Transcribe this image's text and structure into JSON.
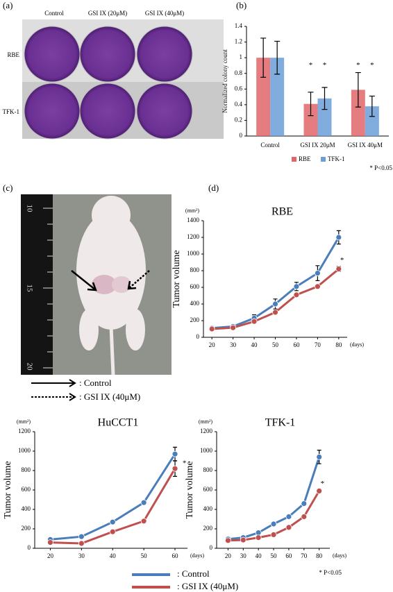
{
  "panels": {
    "a": {
      "label": "(a)",
      "columns": [
        "Control",
        "GSI IX (20μM)",
        "GSI IX (40μM)"
      ],
      "rows": [
        "RBE",
        "TFK-1"
      ]
    },
    "b": {
      "label": "(b)"
    },
    "c": {
      "label": "(c)",
      "ruler": [
        "10",
        "15",
        "20"
      ],
      "legend": [
        ": Control",
        ": GSI IX (40μM)"
      ]
    },
    "d": {
      "label": "(d)"
    }
  },
  "chart_data": [
    {
      "type": "bar",
      "categories": [
        "Control",
        "GSI IX 20μM",
        "GSI IX 40μM"
      ],
      "series": [
        {
          "name": "RBE",
          "color": "#e0666a",
          "values": [
            1,
            0.41,
            0.59
          ],
          "errors": [
            0.25,
            0.15,
            0.22
          ]
        },
        {
          "name": "TFK-1",
          "color": "#6b9fd8",
          "values": [
            1,
            0.48,
            0.38
          ],
          "errors": [
            0.21,
            0.14,
            0.13
          ]
        }
      ],
      "ylim": [
        0,
        1.4
      ],
      "yticks": [
        0,
        0.2,
        0.4,
        0.6,
        0.8,
        1,
        1.2,
        1.4
      ],
      "ylabel": "Normalized colony count",
      "note": "* P<0.05",
      "annotations": [
        {
          "text": "*",
          "category": 1,
          "series": 0,
          "y": 0.9
        },
        {
          "text": "*",
          "category": 1,
          "series": 1,
          "y": 0.9
        },
        {
          "text": "*",
          "category": 2,
          "series": 0,
          "y": 0.9
        },
        {
          "text": "*",
          "category": 2,
          "series": 1,
          "y": 0.9
        }
      ]
    },
    {
      "type": "line",
      "title": "RBE",
      "x": [
        20,
        30,
        40,
        50,
        60,
        70,
        80
      ],
      "xlim": [
        16,
        84
      ],
      "xticks": [
        20,
        30,
        40,
        50,
        60,
        70,
        80
      ],
      "ylim": [
        0,
        1400
      ],
      "yticks": [
        0,
        200,
        400,
        600,
        800,
        1000,
        1200,
        1400
      ],
      "ylabel": "Tumor volume",
      "y_unit": "(mm²)",
      "x_unit": "(days)",
      "series": [
        {
          "color": "#4a7ebb",
          "values": [
            110,
            130,
            230,
            400,
            610,
            770,
            1200
          ],
          "errors": [
            10,
            10,
            40,
            60,
            50,
            90,
            80
          ]
        },
        {
          "color": "#c0504d",
          "values": [
            100,
            115,
            190,
            300,
            510,
            610,
            820
          ],
          "errors": [
            10,
            10,
            15,
            20,
            20,
            20,
            30
          ]
        }
      ],
      "annotations": [
        {
          "text": "*",
          "x": 80,
          "y": 920
        }
      ]
    },
    {
      "type": "line",
      "title": "HuCCT1",
      "x": [
        20,
        30,
        40,
        50,
        60
      ],
      "xlim": [
        15,
        64
      ],
      "xticks": [
        20,
        30,
        40,
        50,
        60
      ],
      "ylim": [
        0,
        1200
      ],
      "yticks": [
        0,
        200,
        400,
        600,
        800,
        1000,
        1200
      ],
      "ylabel": "Tumor volume",
      "y_unit": "(mm²)",
      "x_unit": "(days)",
      "series": [
        {
          "color": "#4a7ebb",
          "values": [
            90,
            120,
            270,
            470,
            970
          ],
          "errors": [
            10,
            10,
            15,
            15,
            70
          ]
        },
        {
          "color": "#c0504d",
          "values": [
            60,
            50,
            170,
            280,
            820
          ],
          "errors": [
            5,
            5,
            10,
            10,
            80
          ]
        }
      ],
      "annotations": [
        {
          "text": "*",
          "x": 62,
          "y": 870
        }
      ]
    },
    {
      "type": "line",
      "title": "TFK-1",
      "x": [
        20,
        30,
        40,
        50,
        60,
        70,
        80
      ],
      "xlim": [
        12.5,
        87
      ],
      "xticks": [
        20,
        30,
        40,
        50,
        60,
        70,
        80
      ],
      "ylim": [
        0,
        1200
      ],
      "yticks": [
        0,
        200,
        400,
        600,
        800,
        1000,
        1200
      ],
      "ylabel": "Tumor volume",
      "y_unit": "(mm²)",
      "x_unit": "(days)",
      "series": [
        {
          "color": "#4a7ebb",
          "values": [
            95,
            110,
            160,
            250,
            325,
            460,
            940
          ],
          "errors": [
            10,
            10,
            10,
            15,
            15,
            15,
            70
          ]
        },
        {
          "color": "#c0504d",
          "values": [
            80,
            85,
            110,
            140,
            215,
            325,
            590
          ],
          "errors": [
            5,
            5,
            5,
            10,
            10,
            10,
            15
          ]
        }
      ],
      "annotations": [
        {
          "text": "*",
          "x": 80,
          "y": 660
        }
      ]
    }
  ],
  "legend": [
    {
      "label": ": Control",
      "color": "#4a7ebb"
    },
    {
      "label": ": GSI IX (40μM)",
      "color": "#c0504d"
    }
  ],
  "footnote": "* P<0.05"
}
